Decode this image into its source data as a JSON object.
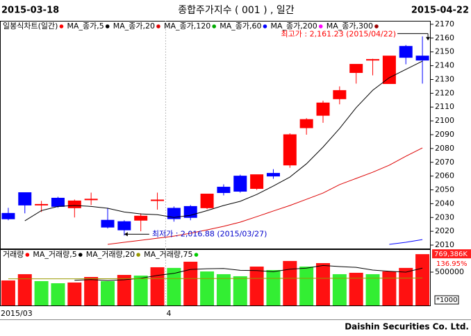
{
  "header": {
    "start_date": "2015-03-18",
    "title": "종합주가지수 ( 001 ) , 일간",
    "end_date": "2015-04-22"
  },
  "chart_data": [
    {
      "type": "candlestick",
      "legend_title": "일봉식차트(일간)",
      "legend_color": "#ff0000",
      "categories": [
        "2015/03",
        null,
        null,
        null,
        null,
        null,
        null,
        null,
        null,
        null,
        "4",
        null,
        null,
        null,
        null,
        null,
        null,
        null,
        null,
        null,
        null,
        null,
        null,
        null,
        null,
        null
      ],
      "open": [
        2033,
        2048,
        2039,
        2044,
        2037,
        2043,
        2028,
        2027,
        2028,
        2042.5,
        2036.7,
        2038,
        2037,
        2052,
        2060,
        2051,
        2062,
        2068,
        2095,
        2104,
        2116,
        2135,
        2144,
        2127,
        2154,
        2147
      ],
      "high": [
        2037,
        2048,
        2042,
        2045,
        2043,
        2048,
        2037,
        2028,
        2033,
        2048,
        2038,
        2039,
        2047,
        2054,
        2061,
        2061,
        2065,
        2091,
        2102,
        2114.6,
        2125,
        2141,
        2145,
        2147,
        2155,
        2161.23
      ],
      "low": [
        2028,
        2033,
        2034,
        2037,
        2030,
        2039,
        2022,
        2016.88,
        2020,
        2035.7,
        2027,
        2028,
        2036,
        2046,
        2048,
        2050,
        2058,
        2066,
        2090,
        2098.6,
        2112,
        2127,
        2133,
        2127,
        2141,
        2127
      ],
      "close": [
        2029,
        2039,
        2039.5,
        2038,
        2042,
        2043.3,
        2023,
        2021,
        2031,
        2042.7,
        2029.1,
        2030,
        2047,
        2048,
        2049,
        2061,
        2060,
        2090,
        2101,
        2113,
        2122,
        2141,
        2144.5,
        2147,
        2146,
        2144
      ],
      "up_color": "#ff0000",
      "down_color": "#0000ff",
      "series": [
        {
          "name": "MA_종가,5",
          "color": "#000000",
          "values": [
            null,
            2027.6,
            2035,
            2038,
            2038.7,
            2038,
            2036.7,
            2034,
            2032.6,
            2032,
            2030,
            2031.6,
            2035,
            2038.7,
            2041.7,
            2046.7,
            2052.8,
            2059.3,
            2068.9,
            2081,
            2094.5,
            2109.6,
            2122.2,
            2131.3,
            2137.3,
            2143.3
          ]
        },
        {
          "name": "MA_종가,20",
          "color": "#dd0000",
          "values": [
            null,
            null,
            null,
            null,
            null,
            null,
            2010.5,
            2012,
            2013.5,
            2015,
            2016.5,
            2018.6,
            2021,
            2023.6,
            2026.6,
            2030.6,
            2034.7,
            2038.7,
            2043.2,
            2047.7,
            2053.8,
            2058.3,
            2062.8,
            2067.9,
            2074.4,
            2080.4
          ]
        },
        {
          "name": "MA_종가,120",
          "color": "#00aa00"
        },
        {
          "name": "MA_종가,60",
          "color": "#0000ff",
          "values": [
            null,
            null,
            null,
            null,
            null,
            null,
            null,
            null,
            null,
            null,
            null,
            null,
            null,
            null,
            null,
            null,
            null,
            null,
            null,
            null,
            null,
            null,
            null,
            2010.5,
            2012,
            2014
          ]
        },
        {
          "name": "MA_종가,200",
          "color": "#ff00ff"
        },
        {
          "name": "MA_종가,300",
          "color": "#990000"
        }
      ],
      "ylim": [
        2007.5,
        2172.5
      ],
      "yticks": [
        2010,
        2020,
        2030,
        2040,
        2050,
        2060,
        2070,
        2080,
        2090,
        2100,
        2110,
        2120,
        2130,
        2140,
        2150,
        2160,
        2170
      ],
      "annotations": [
        {
          "text": "최고가 : 2,161.23 (2015/04/22)",
          "color": "#ff0000"
        },
        {
          "text": "최저가 : 2,016.88 (2015/03/27)",
          "color": "#0000cc"
        }
      ]
    },
    {
      "type": "bar",
      "legend_title": "거래량",
      "legend_color": "#ff0000",
      "values": [
        375000,
        469000,
        365000,
        333000,
        344000,
        427000,
        365000,
        458000,
        448000,
        573000,
        563000,
        656000,
        510000,
        469000,
        438000,
        583000,
        531000,
        667000,
        583000,
        635000,
        469000,
        490000,
        469000,
        510000,
        563000,
        769386
      ],
      "value_labels": [
        null,
        null,
        null,
        null,
        null,
        null,
        null,
        null,
        null,
        null,
        null,
        null,
        null,
        null,
        null,
        null,
        null,
        null,
        null,
        null,
        null,
        null,
        null,
        null,
        null,
        "769,386K"
      ],
      "up_color": "#ff1111",
      "down_color": "#33ee33",
      "series": [
        {
          "name": "MA_거래량,5",
          "color": "#000000",
          "values": [
            null,
            null,
            null,
            null,
            377000,
            388000,
            375000,
            385000,
            408000,
            450000,
            481000,
            540000,
            551000,
            554000,
            527000,
            523000,
            506000,
            544000,
            560000,
            600000,
            583000,
            571000,
            531000,
            513000,
            500000,
            560000
          ]
        },
        {
          "name": "MA_거래량,20",
          "color": "#999900",
          "values": [
            400000,
            400000,
            400000,
            400000,
            400000,
            401000,
            401000,
            402000,
            402000,
            403000,
            403000,
            404000,
            404000,
            405000,
            405000,
            406000,
            406000,
            407000,
            407000,
            408000,
            408000,
            409000,
            409000,
            410000,
            410000,
            411000
          ]
        },
        {
          "name": "MA_거래량,75",
          "color": "#00cc00"
        }
      ],
      "change_label": "136.95%",
      "unit_label": "*1000",
      "ylim": [
        0,
        833000
      ],
      "yticks": [
        500000
      ]
    }
  ],
  "footer": "Daishin Securities Co. Ltd."
}
